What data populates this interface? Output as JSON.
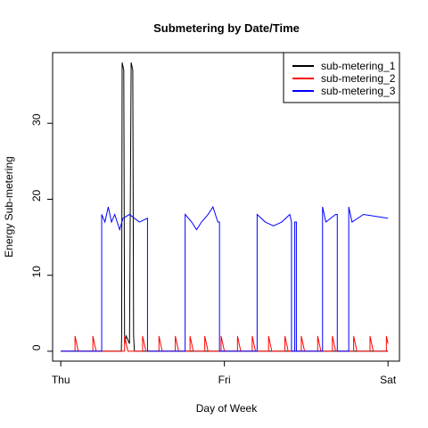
{
  "chart_data": {
    "type": "line",
    "title": "Submetering by Date/Time",
    "x_label": "Day of Week",
    "y_label": "Energy Sub-metering",
    "xlim": [
      -0.05,
      2.07
    ],
    "ylim": [
      -1.3,
      39.3
    ],
    "xticks": [
      {
        "value": 0,
        "label": "Thu"
      },
      {
        "value": 1,
        "label": "Fri"
      },
      {
        "value": 2,
        "label": "Sat"
      }
    ],
    "yticks": [
      0,
      10,
      20,
      30
    ],
    "legend": "topright",
    "series": [
      {
        "name": "sub-metering_1",
        "color": "#000000",
        "x": [
          0,
          0.37,
          0.372,
          0.375,
          0.385,
          0.39,
          0.4,
          0.42,
          0.43,
          0.44,
          0.445,
          0.45,
          2.0
        ],
        "values": [
          0,
          0,
          2,
          38,
          37,
          1,
          2,
          1,
          38,
          37,
          2,
          0,
          0
        ]
      },
      {
        "name": "sub-metering_2",
        "color": "#ff0000",
        "x": [
          0,
          0.087,
          0.087,
          0.107,
          0.196,
          0.196,
          0.216,
          0.39,
          0.39,
          0.41,
          0.5,
          0.5,
          0.52,
          0.6,
          0.6,
          0.62,
          0.7,
          0.7,
          0.72,
          0.79,
          0.79,
          0.81,
          0.88,
          0.88,
          0.9,
          0.98,
          0.98,
          1.0,
          1.08,
          1.08,
          1.1,
          1.17,
          1.17,
          1.19,
          1.27,
          1.27,
          1.29,
          1.37,
          1.37,
          1.39,
          1.47,
          1.47,
          1.49,
          1.57,
          1.57,
          1.59,
          1.66,
          1.66,
          1.68,
          1.79,
          1.79,
          1.81,
          1.89,
          1.89,
          1.91,
          1.99,
          1.99,
          2.0
        ],
        "values": [
          0,
          0,
          2,
          0,
          0,
          2,
          0,
          0,
          2,
          0,
          0,
          2,
          0,
          0,
          2,
          0,
          0,
          2,
          0,
          0,
          2,
          0,
          0,
          2,
          0,
          0,
          2,
          0,
          0,
          2,
          0,
          0,
          2,
          0,
          0,
          2,
          0,
          0,
          2,
          0,
          0,
          2,
          0,
          0,
          2,
          0,
          0,
          2,
          0,
          0,
          2,
          0,
          0,
          2,
          0,
          0,
          2,
          1
        ]
      },
      {
        "name": "sub-metering_3",
        "color": "#0000ff",
        "x": [
          0,
          0.25,
          0.25,
          0.27,
          0.29,
          0.31,
          0.33,
          0.36,
          0.38,
          0.42,
          0.48,
          0.53,
          0.53,
          0.76,
          0.76,
          0.8,
          0.83,
          0.86,
          0.9,
          0.93,
          0.96,
          0.97,
          0.97,
          1.2,
          1.2,
          1.25,
          1.3,
          1.35,
          1.4,
          1.41,
          1.41,
          1.43,
          1.43,
          1.44,
          1.44,
          1.6,
          1.6,
          1.62,
          1.68,
          1.69,
          1.69,
          1.76,
          1.76,
          1.78,
          1.85,
          2.0
        ],
        "values": [
          0,
          0,
          18,
          17,
          19,
          17,
          18,
          16,
          17.5,
          18,
          17,
          17.5,
          0,
          0,
          18,
          17,
          16,
          17,
          18,
          19,
          17,
          17,
          0,
          0,
          18,
          17,
          16.5,
          17,
          18,
          17,
          0,
          0,
          17,
          17,
          0,
          0,
          19,
          17,
          18,
          18,
          0,
          0,
          19,
          17,
          18,
          17.5
        ]
      }
    ]
  }
}
